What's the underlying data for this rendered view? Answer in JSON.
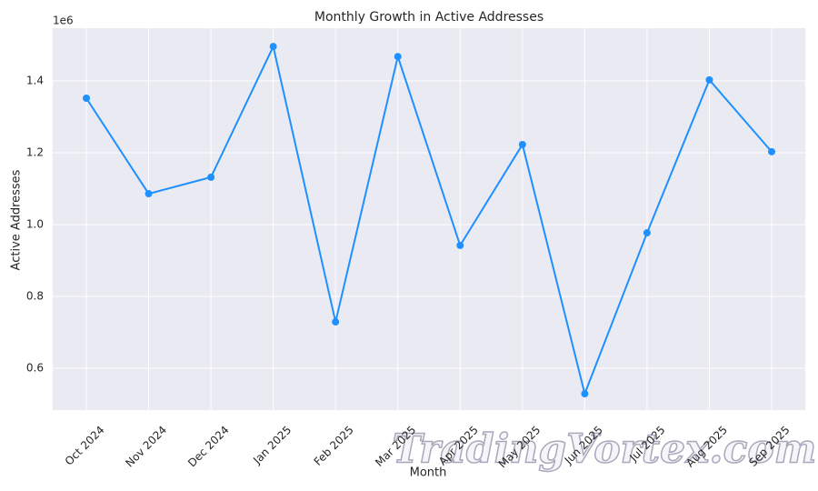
{
  "chart_data": {
    "type": "line",
    "title": "Monthly Growth in Active Addresses",
    "x_label": "Month",
    "y_label": "Active Addresses",
    "y_offset_label": "1e6",
    "categories": [
      "Oct 2024",
      "Nov 2024",
      "Dec 2024",
      "Jan 2025",
      "Feb 2025",
      "Mar 2025",
      "Apr 2025",
      "May 2025",
      "Jun 2025",
      "Jul 2025",
      "Aug 2025",
      "Sep 2025"
    ],
    "series": [
      {
        "name": "Active Addresses",
        "color": "#1e90ff",
        "values": [
          1352000,
          1086000,
          1132000,
          1496000,
          729000,
          1468000,
          942000,
          1223000,
          529000,
          977000,
          1403000,
          1203000
        ]
      }
    ],
    "ylim": [
      483500,
      1547000
    ],
    "yticks": [
      {
        "value": 600000,
        "label": "0.6"
      },
      {
        "value": 800000,
        "label": "0.8"
      },
      {
        "value": 1000000,
        "label": "1.0"
      },
      {
        "value": 1200000,
        "label": "1.2"
      },
      {
        "value": 1400000,
        "label": "1.4"
      }
    ],
    "grid": true,
    "background": "#eaeaf2",
    "grid_color": "#ffffff",
    "watermark": "TradingVortex.com"
  }
}
